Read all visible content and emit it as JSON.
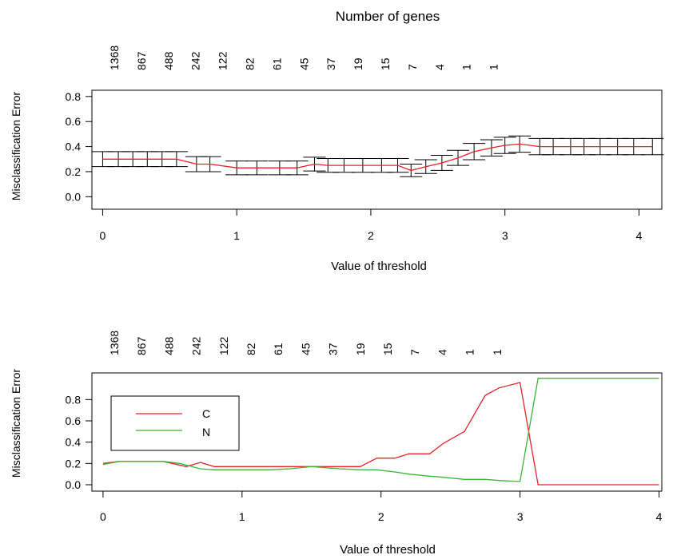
{
  "chart_data": [
    {
      "type": "line",
      "title": "Number of genes",
      "xlabel": "Value of threshold",
      "ylabel": "Misclassification Error",
      "x_ticks": [
        "0",
        "1",
        "2",
        "3",
        "4"
      ],
      "y_ticks": [
        "0.0",
        "0.2",
        "0.4",
        "0.6",
        "0.8"
      ],
      "xlim": [
        -0.08,
        4.17
      ],
      "ylim": [
        -0.1,
        0.85
      ],
      "top_axis_labels": [
        "1368",
        "867",
        "488",
        "242",
        "122",
        "82",
        "61",
        "45",
        "37",
        "19",
        "15",
        "7",
        "4",
        "1",
        "1"
      ],
      "error_bars": true,
      "series": [
        {
          "color": "#e8202a",
          "x": [
            0,
            0.117,
            0.225,
            0.333,
            0.443,
            0.551,
            0.7,
            0.8,
            1.0,
            1.15,
            1.32,
            1.45,
            1.58,
            1.68,
            1.8,
            1.94,
            2.08,
            2.2,
            2.3,
            2.41,
            2.53,
            2.65,
            2.77,
            2.9,
            3.0,
            3.11,
            3.26,
            3.36,
            3.49,
            3.59,
            3.71,
            3.84,
            3.96,
            4.1
          ],
          "y": [
            0.3,
            0.3,
            0.3,
            0.3,
            0.3,
            0.3,
            0.26,
            0.26,
            0.23,
            0.23,
            0.23,
            0.23,
            0.26,
            0.25,
            0.25,
            0.25,
            0.25,
            0.25,
            0.21,
            0.24,
            0.27,
            0.31,
            0.36,
            0.39,
            0.41,
            0.42,
            0.4,
            0.4,
            0.4,
            0.4,
            0.4,
            0.4,
            0.4,
            0.4
          ],
          "err": [
            0.06,
            0.06,
            0.06,
            0.06,
            0.06,
            0.06,
            0.06,
            0.06,
            0.055,
            0.055,
            0.055,
            0.055,
            0.055,
            0.055,
            0.055,
            0.055,
            0.055,
            0.055,
            0.05,
            0.055,
            0.06,
            0.06,
            0.065,
            0.065,
            0.065,
            0.065,
            0.065,
            0.065,
            0.065,
            0.065,
            0.065,
            0.065,
            0.065,
            0.065
          ]
        }
      ]
    },
    {
      "type": "line",
      "xlabel": "Value of threshold",
      "ylabel": "Misclassification Error",
      "x_ticks": [
        "0",
        "1",
        "2",
        "3",
        "4"
      ],
      "y_ticks": [
        "0.0",
        "0.2",
        "0.4",
        "0.6",
        "0.8"
      ],
      "xlim": [
        -0.08,
        4.02
      ],
      "ylim": [
        -0.06,
        1.05
      ],
      "top_axis_labels": [
        "1368",
        "867",
        "488",
        "242",
        "122",
        "82",
        "61",
        "45",
        "37",
        "19",
        "15",
        "7",
        "4",
        "1",
        "1"
      ],
      "legend": "top-left",
      "series": [
        {
          "name": "C",
          "color": "#e8202a",
          "x": [
            0,
            0.12,
            0.23,
            0.35,
            0.43,
            0.6,
            0.7,
            0.8,
            0.95,
            1.1,
            1.2,
            1.35,
            1.5,
            1.65,
            1.75,
            1.85,
            1.97,
            2.1,
            2.2,
            2.35,
            2.45,
            2.6,
            2.75,
            2.85,
            3.0,
            3.13,
            3.3,
            3.5,
            3.7,
            3.9,
            4.0
          ],
          "y": [
            0.2,
            0.22,
            0.22,
            0.22,
            0.22,
            0.17,
            0.21,
            0.17,
            0.17,
            0.17,
            0.17,
            0.17,
            0.17,
            0.17,
            0.17,
            0.17,
            0.25,
            0.25,
            0.29,
            0.29,
            0.39,
            0.5,
            0.84,
            0.91,
            0.96,
            0.0,
            0.0,
            0.0,
            0.0,
            0.0,
            0.0
          ]
        },
        {
          "name": "N",
          "color": "#3cb534",
          "x": [
            0,
            0.12,
            0.23,
            0.35,
            0.43,
            0.55,
            0.7,
            0.8,
            0.95,
            1.2,
            1.35,
            1.5,
            1.6,
            1.7,
            1.85,
            1.97,
            2.1,
            2.2,
            2.35,
            2.45,
            2.6,
            2.75,
            2.85,
            3.0,
            3.13,
            3.3,
            3.5,
            3.7,
            3.9,
            4.0
          ],
          "y": [
            0.19,
            0.22,
            0.22,
            0.22,
            0.22,
            0.2,
            0.15,
            0.14,
            0.14,
            0.14,
            0.15,
            0.17,
            0.16,
            0.15,
            0.14,
            0.14,
            0.12,
            0.1,
            0.08,
            0.07,
            0.05,
            0.05,
            0.04,
            0.03,
            1.0,
            1.0,
            1.0,
            1.0,
            1.0,
            1.0
          ]
        }
      ]
    }
  ]
}
